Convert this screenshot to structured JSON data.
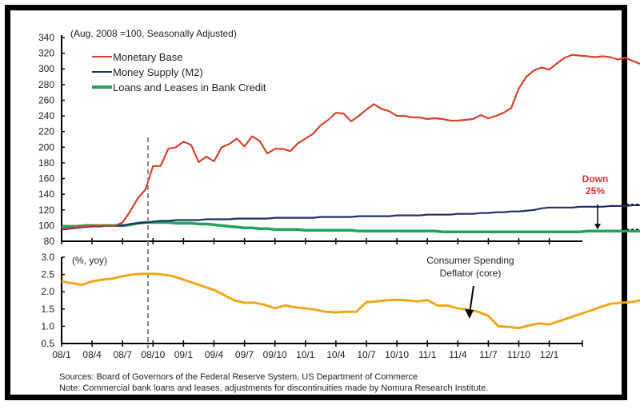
{
  "chart_data": [
    {
      "type": "line",
      "title": "(Aug. 2008 =100, Seasonally Adjusted)",
      "xlabel": "",
      "ylabel": "",
      "ylim": [
        80,
        340
      ],
      "yticks": [
        80,
        100,
        120,
        140,
        160,
        180,
        200,
        220,
        240,
        260,
        280,
        300,
        320,
        340
      ],
      "legend_position": "top-left",
      "x_start": "2008-01",
      "x_unit": "month",
      "series": [
        {
          "name": "Monetary Base",
          "color": "#d9412b",
          "values": [
            96,
            97,
            98,
            99,
            100,
            100,
            100,
            100,
            104,
            118,
            135,
            146,
            176,
            176,
            198,
            200,
            207,
            203,
            181,
            188,
            182,
            200,
            204,
            211,
            201,
            214,
            208,
            192,
            198,
            198,
            195,
            205,
            211,
            217,
            228,
            235,
            244,
            243,
            233,
            240,
            248,
            255,
            249,
            246,
            240,
            240,
            238,
            238,
            236,
            237,
            236,
            234,
            234,
            235,
            236,
            241,
            237,
            240,
            244,
            250,
            275,
            290,
            298,
            302,
            299,
            307,
            314,
            318,
            317,
            316,
            315,
            316,
            315,
            312,
            314,
            310,
            306,
            312,
            307,
            314,
            316,
            322,
            318
          ]
        },
        {
          "name": "Money Supply (M2)",
          "color": "#1f2f6b",
          "values": [
            95,
            96,
            97,
            98,
            99,
            99,
            100,
            100,
            100,
            102,
            103,
            104,
            105,
            106,
            106,
            107,
            107,
            107,
            107,
            108,
            108,
            108,
            108,
            109,
            109,
            109,
            109,
            109,
            110,
            110,
            110,
            110,
            110,
            110,
            111,
            111,
            111,
            111,
            111,
            112,
            112,
            112,
            112,
            112,
            113,
            113,
            113,
            113,
            114,
            114,
            114,
            114,
            115,
            115,
            115,
            116,
            116,
            117,
            117,
            118,
            118,
            119,
            120,
            122,
            123,
            123,
            123,
            123,
            124,
            124,
            124,
            124,
            125,
            125,
            125,
            126,
            126,
            126,
            127,
            127,
            127,
            127,
            127
          ]
        },
        {
          "name": "Loans and Leases in Bank Credit",
          "color": "#1fa65a",
          "values": [
            99,
            99,
            99,
            100,
            100,
            100,
            100,
            100,
            100,
            101,
            103,
            104,
            104,
            104,
            104,
            103,
            103,
            103,
            102,
            102,
            101,
            100,
            99,
            98,
            97,
            97,
            96,
            96,
            95,
            95,
            95,
            95,
            94,
            94,
            94,
            94,
            94,
            94,
            94,
            93,
            93,
            93,
            93,
            93,
            93,
            93,
            93,
            93,
            93,
            93,
            92,
            92,
            92,
            92,
            92,
            92,
            92,
            92,
            92,
            92,
            92,
            92,
            92,
            92,
            92,
            92,
            92,
            92,
            92,
            93,
            93,
            93,
            93,
            93,
            93,
            93,
            93,
            93,
            94,
            94,
            94,
            95,
            95
          ]
        }
      ],
      "annotations": [
        {
          "text_line1": "Down",
          "text_line2": "25%",
          "color": "#d93333",
          "from_series": "Money Supply (M2)",
          "to_series": "Loans and Leases in Bank Credit"
        }
      ],
      "vertical_marker": "2008-09"
    },
    {
      "type": "line",
      "title": "(%, yoy)",
      "ylim": [
        0.5,
        3.0
      ],
      "yticks": [
        "0.5",
        "1.0",
        "1.5",
        "2.0",
        "2.5",
        "3.0"
      ],
      "xticks": [
        "08/1",
        "08/4",
        "08/7",
        "08/10",
        "09/1",
        "09/4",
        "09/7",
        "09/10",
        "10/1",
        "10/4",
        "10/7",
        "10/10",
        "11/1",
        "11/4",
        "11/7",
        "11/10",
        "12/1"
      ],
      "x_start": "2008-01",
      "x_unit": "month",
      "series": [
        {
          "name": "Consumer Spending Deflator (core)",
          "color": "#f0a81c",
          "values": [
            2.3,
            2.25,
            2.2,
            2.3,
            2.35,
            2.38,
            2.45,
            2.5,
            2.52,
            2.52,
            2.5,
            2.45,
            2.35,
            2.25,
            2.15,
            2.05,
            1.9,
            1.75,
            1.68,
            1.68,
            1.62,
            1.52,
            1.6,
            1.55,
            1.52,
            1.48,
            1.42,
            1.4,
            1.42,
            1.42,
            1.7,
            1.72,
            1.75,
            1.77,
            1.75,
            1.72,
            1.76,
            1.6,
            1.6,
            1.52,
            1.48,
            1.42,
            1.3,
            1.0,
            0.98,
            0.95,
            1.02,
            1.08,
            1.05,
            1.15,
            1.25,
            1.35,
            1.45,
            1.55,
            1.65,
            1.68,
            1.7,
            1.75,
            1.85,
            1.95,
            1.92
          ]
        }
      ],
      "annotations": [
        {
          "text_line1": "Consumer Spending",
          "text_line2": "Deflator (core)",
          "target_month": "2011-04"
        }
      ]
    }
  ],
  "footer": {
    "sources": "Sources: Board of Governors of the Federal Reserve System, US Department of Commerce",
    "note": "Note: Commercial bank loans and leases, adjustments for discontinuities made by Nomura Research Institute."
  }
}
